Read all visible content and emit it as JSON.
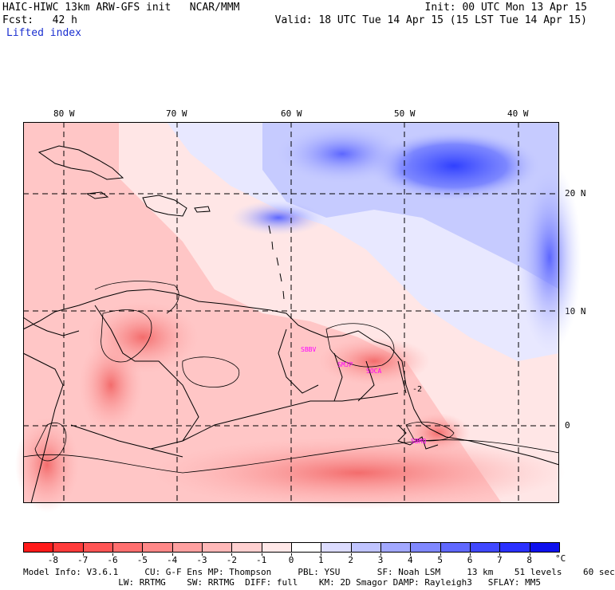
{
  "header": {
    "line1_left": "HAIC-HIWC 13km ARW-GFS init   NCAR/MMM",
    "line1_right": "Init: 00 UTC Mon 13 Apr 15",
    "line2_left": "Fcst:   42 h",
    "line2_right": "Valid: 18 UTC Tue 14 Apr 15 (15 LST Tue 14 Apr 15)",
    "field_name": "Lifted index"
  },
  "map": {
    "lon_labels": [
      "80 W",
      "70 W",
      "60 W",
      "50 W",
      "40 W"
    ],
    "lat_labels": [
      "20 N",
      "10 N",
      "0"
    ],
    "stations": [
      "SBBV",
      "SMJP",
      "SOCA",
      "SBMQ"
    ],
    "contour_label": "-2"
  },
  "colorbar": {
    "unit": "°C",
    "tick_labels": [
      "-8",
      "-7",
      "-6",
      "-5",
      "-4",
      "-3",
      "-2",
      "-1",
      "0",
      "1",
      "2",
      "3",
      "4",
      "5",
      "6",
      "7",
      "8"
    ],
    "colors": [
      "#ff1a1a",
      "#ff3b3b",
      "#ff5555",
      "#ff6f6f",
      "#ff8888",
      "#ffa0a0",
      "#ffb8b8",
      "#ffd0d0",
      "#ffe8e8",
      "#ffffff",
      "#dcdcff",
      "#c0c4ff",
      "#a2a8ff",
      "#8088ff",
      "#6068ff",
      "#4048ff",
      "#2a30ff",
      "#0d10ee"
    ]
  },
  "footer": {
    "line1": "Model Info: V3.6.1     CU: G-F Ens MP: Thompson     PBL: YSU       SF: Noah LSM     13 km    51 levels    60 sec",
    "line2": "                  LW: RRTMG    SW: RRTMG  DIFF: full    KM: 2D Smagor DAMP: Rayleigh3   SFLAY: MM5"
  }
}
